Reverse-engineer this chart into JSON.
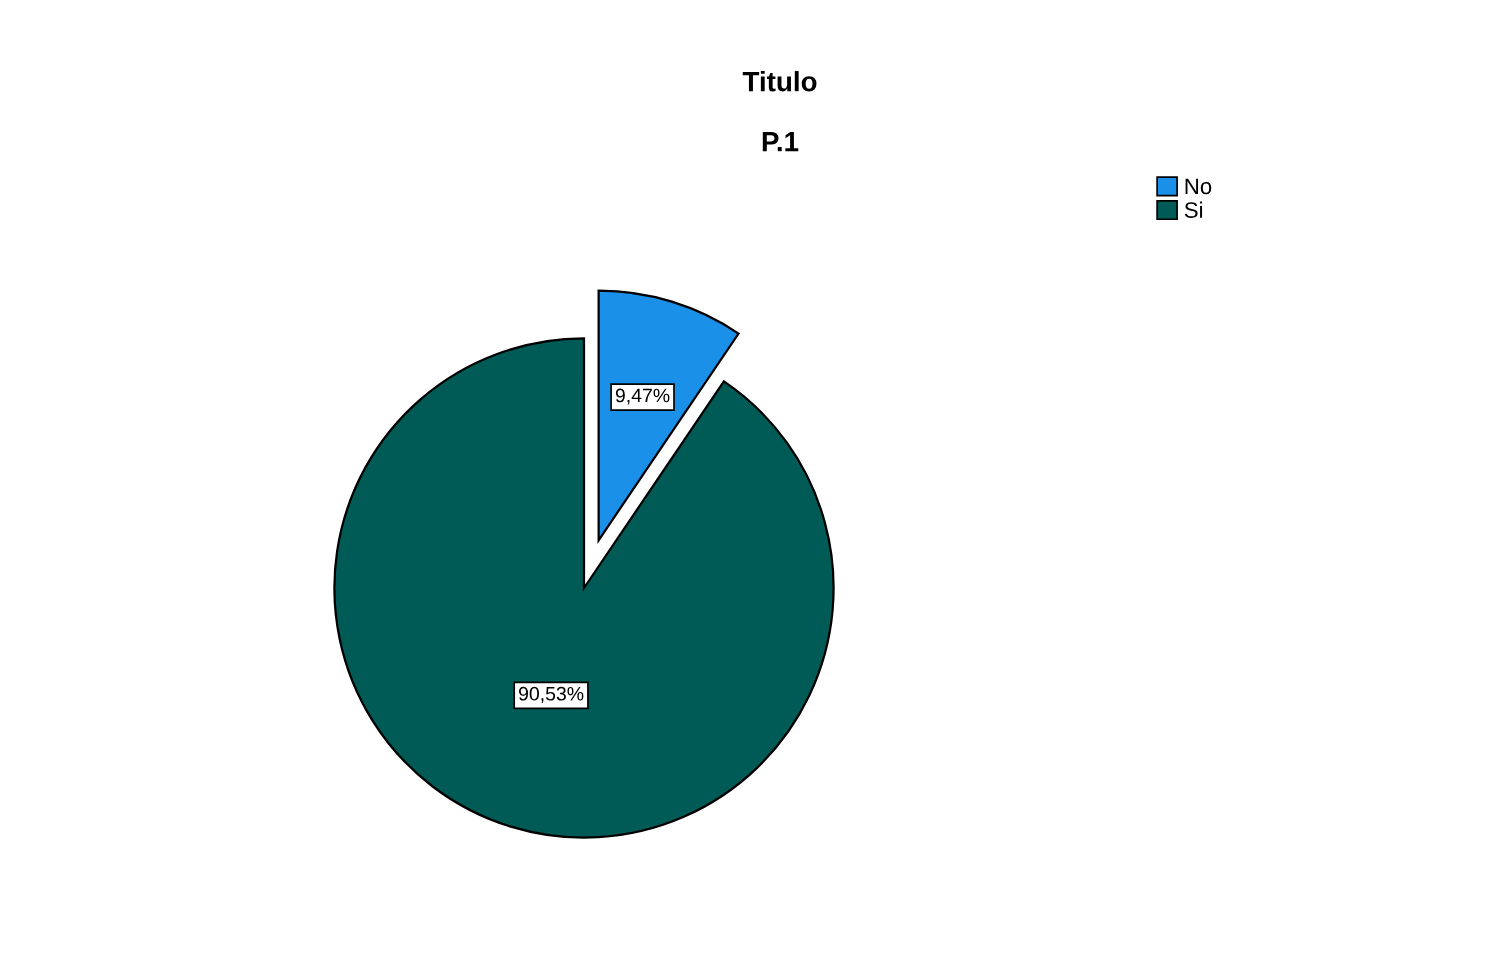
{
  "chart_data": {
    "type": "pie",
    "title": "Titulo",
    "subtitle": "P.1",
    "categories": [
      "No",
      "Si"
    ],
    "values": [
      9.47,
      90.53
    ],
    "colors": [
      "#1a90e8",
      "#005a55"
    ],
    "value_labels": [
      "9,47%",
      "90,53%"
    ],
    "legend": "top right"
  }
}
